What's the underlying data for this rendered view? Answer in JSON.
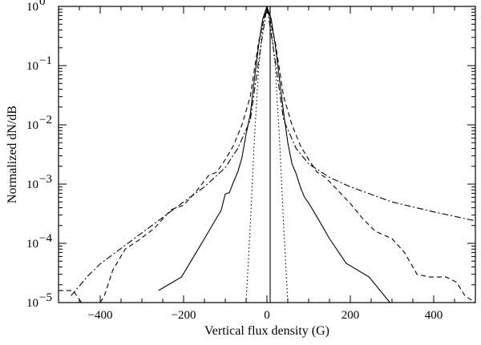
{
  "chart_data": {
    "type": "line",
    "xlabel": "Vertical flux density (G)",
    "ylabel": "Normalized dN/dB",
    "xlim": [
      -500,
      500
    ],
    "ylim": [
      1e-05,
      1
    ],
    "y_scale": "log",
    "grid": false,
    "legend": "none",
    "x_ticks": [
      -400,
      -200,
      0,
      200,
      400
    ],
    "x_tick_labels": [
      "−400",
      "−200",
      "0",
      "200",
      "400"
    ],
    "y_ticks": [
      1e-05,
      0.0001,
      0.001,
      0.01,
      0.1,
      1
    ],
    "y_tick_labels": [
      {
        "base": "10",
        "exp": "−5"
      },
      {
        "base": "10",
        "exp": "−4"
      },
      {
        "base": "10",
        "exp": "−3"
      },
      {
        "base": "10",
        "exp": "−2"
      },
      {
        "base": "10",
        "exp": "−1"
      },
      {
        "base": "10",
        "exp": "0"
      }
    ],
    "series": [
      {
        "style": "solid",
        "x": [
          -260,
          -205,
          -150,
          -110,
          -100,
          -90,
          -80,
          -70,
          -60,
          -50,
          -40,
          -30,
          -20,
          -10,
          0,
          10,
          20,
          30,
          40,
          50,
          60,
          70,
          80,
          90,
          100,
          120,
          150,
          190,
          245,
          295
        ],
        "y": [
          1.6e-05,
          2.7e-05,
          0.00012,
          0.00036,
          0.00068,
          0.00072,
          0.0011,
          0.0016,
          0.0028,
          0.007,
          0.015,
          0.06,
          0.22,
          0.62,
          1.0,
          0.62,
          0.22,
          0.06,
          0.016,
          0.005,
          0.0022,
          0.0015,
          0.0009,
          0.0006,
          0.00048,
          0.00028,
          0.00012,
          4.6e-05,
          2.7e-05,
          1e-05
        ]
      },
      {
        "style": "dotted",
        "x": [
          -50,
          -40,
          -30,
          -20,
          -10,
          0,
          10,
          20,
          30,
          40,
          50
        ],
        "y": [
          1e-05,
          0.0002,
          0.006,
          0.09,
          0.5,
          1.0,
          0.5,
          0.09,
          0.006,
          0.0002,
          1e-05
        ]
      },
      {
        "style": "dashed",
        "x": [
          -500,
          -465,
          -445,
          -420,
          -400,
          -390,
          -370,
          -340,
          -310,
          -270,
          -230,
          -200,
          -170,
          -140,
          -120,
          -100,
          -80,
          -60,
          -40,
          -20,
          0,
          20,
          40,
          60,
          80,
          100,
          120,
          140,
          160,
          200,
          230,
          260,
          300,
          330,
          360,
          390,
          410,
          430,
          455,
          475,
          500
        ],
        "y": [
          1.6e-05,
          1.6e-05,
          1e-05,
          1e-05,
          1e-05,
          1.3e-05,
          3.5e-05,
          8e-05,
          0.00011,
          0.00018,
          0.00037,
          0.00044,
          0.00075,
          0.0014,
          0.0016,
          0.0026,
          0.0045,
          0.01,
          0.03,
          0.25,
          1.0,
          0.25,
          0.03,
          0.01,
          0.0045,
          0.0026,
          0.0016,
          0.0013,
          0.00093,
          0.00047,
          0.00026,
          0.00016,
          0.00012,
          7e-05,
          3e-05,
          2.7e-05,
          2.7e-05,
          2.7e-05,
          2.2e-05,
          1.3e-05,
          1e-05
        ]
      },
      {
        "style": "dash-dot",
        "x": [
          -470,
          -430,
          -400,
          -300,
          -200,
          -150,
          -100,
          -70,
          -40,
          -20,
          0,
          20,
          40,
          70,
          100,
          150,
          200,
          300,
          400,
          500
        ],
        "y": [
          1.3e-05,
          2.8e-05,
          4.5e-05,
          0.00015,
          0.0005,
          0.0009,
          0.0019,
          0.004,
          0.012,
          0.12,
          1.0,
          0.12,
          0.012,
          0.004,
          0.0022,
          0.0013,
          0.0009,
          0.0005,
          0.00034,
          0.00024
        ]
      }
    ]
  }
}
